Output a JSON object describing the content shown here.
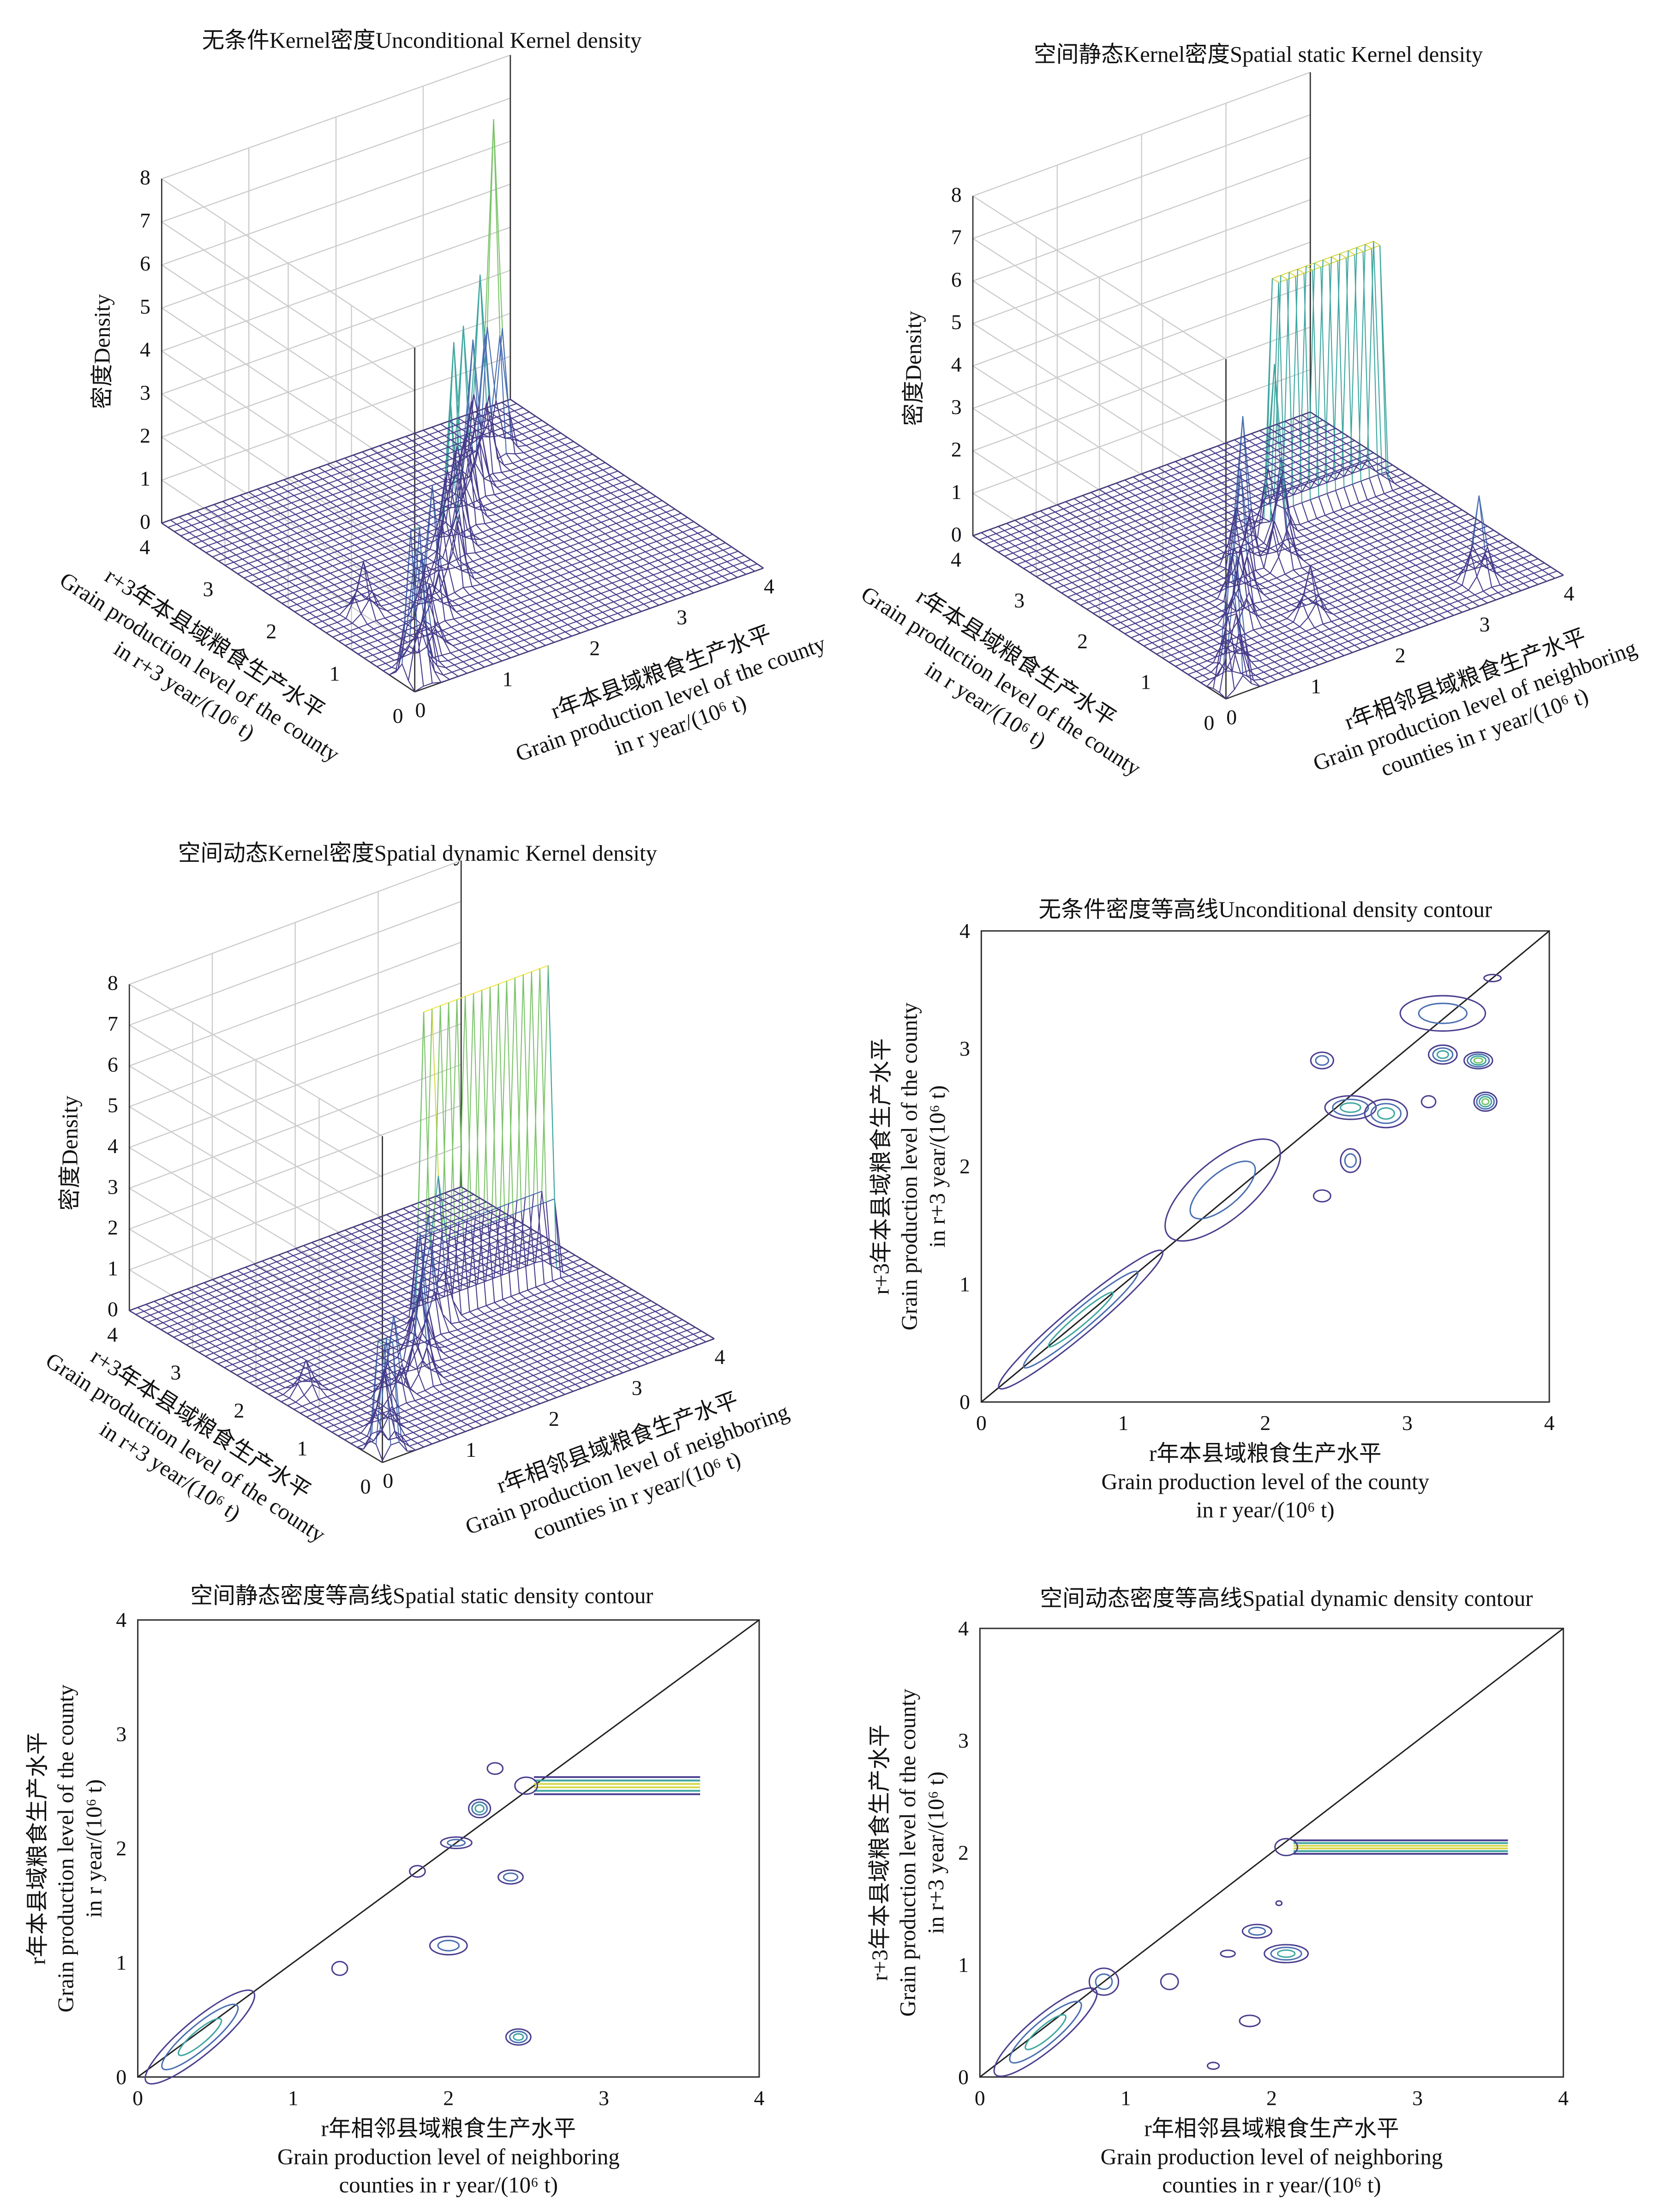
{
  "chart_data": [
    {
      "type": "surface",
      "title": "无条件Kernel密度Unconditional Kernel density",
      "zlabel": "密度Density",
      "xlabel": [
        "r年本县域粮食生产水平",
        "Grain production level of the county",
        "in r year/(10⁶ t)"
      ],
      "ylabel": [
        "r+3年本县域粮食生产水平",
        "Grain production level of the county",
        "in r+3 year/(10⁶ t)"
      ],
      "xlim": [
        0,
        4
      ],
      "ylim": [
        0,
        4
      ],
      "zlim": [
        0,
        8
      ],
      "xticks": [
        "0",
        "1",
        "2",
        "3",
        "4"
      ],
      "yticks": [
        "0",
        "1",
        "2",
        "3",
        "4"
      ],
      "zticks": [
        "0",
        "1",
        "2",
        "3",
        "4",
        "5",
        "6",
        "7",
        "8"
      ],
      "peaks": [
        [
          0.15,
          0.2,
          4.5
        ],
        [
          0.3,
          0.35,
          3.5
        ],
        [
          0.6,
          0.6,
          1.5
        ],
        [
          1.0,
          1.1,
          3.0
        ],
        [
          1.5,
          1.5,
          4.2
        ],
        [
          1.9,
          2.0,
          4.8
        ],
        [
          2.3,
          2.4,
          4.5
        ],
        [
          2.7,
          2.8,
          3.5
        ],
        [
          3.0,
          3.1,
          4.5
        ],
        [
          3.3,
          3.3,
          7.7
        ],
        [
          0.5,
          1.5,
          1.2
        ]
      ],
      "ridges": []
    },
    {
      "type": "surface",
      "title": "空间静态Kernel密度Spatial static Kernel density",
      "zlabel": "密度Density",
      "xlabel": [
        "r年相邻县域粮食生产水平",
        "Grain production level of neighboring",
        "counties in r year/(10⁶ t)"
      ],
      "ylabel": [
        "r年本县域粮食生产水平",
        "Grain production level of the county",
        "in r year/(10⁶ t)"
      ],
      "xlim": [
        0,
        4
      ],
      "ylim": [
        0,
        4
      ],
      "zlim": [
        0,
        8
      ],
      "xticks": [
        "0",
        "1",
        "2",
        "3",
        "4"
      ],
      "yticks": [
        "0",
        "1",
        "2",
        "3",
        "4"
      ],
      "zticks": [
        "0",
        "1",
        "2",
        "3",
        "4",
        "5",
        "6",
        "7",
        "8"
      ],
      "peaks": [
        [
          0.2,
          0.15,
          4.0
        ],
        [
          0.45,
          0.5,
          1.5
        ],
        [
          1.0,
          1.1,
          1.8
        ],
        [
          1.3,
          1.5,
          3.0
        ],
        [
          1.7,
          2.0,
          3.5
        ],
        [
          2.0,
          1.8,
          2.5
        ],
        [
          2.3,
          2.3,
          4.0
        ],
        [
          3.3,
          0.4,
          2.0
        ],
        [
          1.6,
          0.8,
          1.2
        ]
      ],
      "ridges": [
        [
          2.5,
          3.7,
          2.55,
          7.9
        ]
      ]
    },
    {
      "type": "surface",
      "title": "空间动态Kernel密度Spatial dynamic Kernel density",
      "zlabel": "密度Density",
      "xlabel": [
        "r年相邻县域粮食生产水平",
        "Grain production level of neighboring",
        "counties in r year/(10⁶ t)"
      ],
      "ylabel": [
        "r+3年本县域粮食生产水平",
        "Grain production level of the county",
        "in r+3 year/(10⁶ t)"
      ],
      "xlim": [
        0,
        4
      ],
      "ylim": [
        0,
        4
      ],
      "zlim": [
        0,
        8
      ],
      "xticks": [
        "0",
        "1",
        "2",
        "3",
        "4"
      ],
      "yticks": [
        "0",
        "1",
        "2",
        "3",
        "4"
      ],
      "zticks": [
        "0",
        "1",
        "2",
        "3",
        "4",
        "5",
        "6",
        "7",
        "8"
      ],
      "peaks": [
        [
          0.15,
          0.15,
          4.5
        ],
        [
          0.4,
          0.5,
          1.5
        ],
        [
          0.9,
          1.0,
          2.0
        ],
        [
          1.3,
          1.1,
          2.5
        ],
        [
          1.6,
          1.5,
          3.0
        ],
        [
          2.0,
          1.9,
          2.8
        ],
        [
          2.2,
          2.0,
          3.5
        ],
        [
          0.3,
          1.6,
          0.8
        ]
      ],
      "ridges": [
        [
          2.1,
          3.6,
          2.1,
          7.5
        ]
      ]
    },
    {
      "type": "contour",
      "title": "无条件密度等高线Unconditional density contour",
      "xlabel": [
        "r年本县域粮食生产水平",
        "Grain production level of the county",
        "in r year/(10⁶ t)"
      ],
      "ylabel": [
        "r+3年本县域粮食生产水平",
        "Grain production level of the county",
        "in r+3 year/(10⁶ t)"
      ],
      "xlim": [
        0,
        4
      ],
      "ylim": [
        0,
        4
      ],
      "xticks": [
        "0",
        "1",
        "2",
        "3",
        "4"
      ],
      "yticks": [
        "0",
        "1",
        "2",
        "3",
        "4"
      ],
      "blobs": [
        [
          0.7,
          0.7,
          0.75,
          0.12,
          3
        ],
        [
          1.7,
          1.8,
          0.5,
          0.25,
          2
        ],
        [
          2.6,
          2.5,
          0.18,
          0.1,
          3
        ],
        [
          2.85,
          2.45,
          0.15,
          0.12,
          3
        ],
        [
          2.6,
          2.05,
          0.07,
          0.1,
          2
        ],
        [
          2.4,
          2.9,
          0.08,
          0.07,
          2
        ],
        [
          3.25,
          3.3,
          0.3,
          0.15,
          2
        ],
        [
          3.25,
          2.95,
          0.1,
          0.08,
          3
        ],
        [
          3.55,
          2.55,
          0.08,
          0.08,
          4
        ],
        [
          3.5,
          2.9,
          0.1,
          0.07,
          4
        ],
        [
          3.15,
          2.55,
          0.05,
          0.05,
          1
        ],
        [
          2.4,
          1.75,
          0.06,
          0.05,
          1
        ],
        [
          3.6,
          3.6,
          0.06,
          0.03,
          1
        ]
      ],
      "ridges": []
    },
    {
      "type": "contour",
      "title": "空间静态密度等高线Spatial static density contour",
      "xlabel": [
        "r年相邻县域粮食生产水平",
        "Grain production level of neighboring",
        "counties in r year/(10⁶ t)"
      ],
      "ylabel": [
        "r年本县域粮食生产水平",
        "Grain production level of the county",
        "in r year/(10⁶ t)"
      ],
      "xlim": [
        0,
        4
      ],
      "ylim": [
        0,
        4
      ],
      "xticks": [
        "0",
        "1",
        "2",
        "3",
        "4"
      ],
      "yticks": [
        "0",
        "1",
        "2",
        "3",
        "4"
      ],
      "blobs": [
        [
          0.4,
          0.35,
          0.45,
          0.15,
          3
        ],
        [
          2.2,
          2.35,
          0.07,
          0.08,
          3
        ],
        [
          2.05,
          2.05,
          0.1,
          0.05,
          2
        ],
        [
          2.4,
          1.75,
          0.08,
          0.06,
          2
        ],
        [
          2.0,
          1.15,
          0.12,
          0.08,
          2
        ],
        [
          2.45,
          0.35,
          0.08,
          0.07,
          3
        ],
        [
          1.3,
          0.95,
          0.05,
          0.06,
          1
        ],
        [
          1.8,
          1.8,
          0.05,
          0.05,
          1
        ],
        [
          2.3,
          2.7,
          0.05,
          0.05,
          1
        ]
      ],
      "ridges": [
        [
          2.5,
          3.62,
          2.55,
          0.15,
          6
        ]
      ]
    },
    {
      "type": "contour",
      "title": "空间动态密度等高线Spatial dynamic density contour",
      "xlabel": [
        "r年相邻县域粮食生产水平",
        "Grain production level of neighboring",
        "counties in r year/(10⁶ t)"
      ],
      "ylabel": [
        "r+3年本县域粮食生产水平",
        "Grain production level of the county",
        "in r+3 year/(10⁶ t)"
      ],
      "xlim": [
        0,
        4
      ],
      "ylim": [
        0,
        4
      ],
      "xticks": [
        "0",
        "1",
        "2",
        "3",
        "4"
      ],
      "yticks": [
        "0",
        "1",
        "2",
        "3",
        "4"
      ],
      "blobs": [
        [
          0.45,
          0.4,
          0.45,
          0.15,
          3
        ],
        [
          0.85,
          0.85,
          0.1,
          0.12,
          2
        ],
        [
          2.1,
          1.1,
          0.15,
          0.08,
          3
        ],
        [
          1.9,
          1.3,
          0.1,
          0.06,
          2
        ],
        [
          1.7,
          1.1,
          0.05,
          0.03,
          1
        ],
        [
          1.3,
          0.85,
          0.06,
          0.07,
          1
        ],
        [
          1.85,
          0.5,
          0.07,
          0.05,
          1
        ],
        [
          1.6,
          0.1,
          0.04,
          0.03,
          1
        ],
        [
          2.05,
          1.55,
          0.02,
          0.02,
          1
        ]
      ],
      "ridges": [
        [
          2.1,
          3.62,
          2.05,
          0.12,
          6
        ]
      ]
    }
  ]
}
